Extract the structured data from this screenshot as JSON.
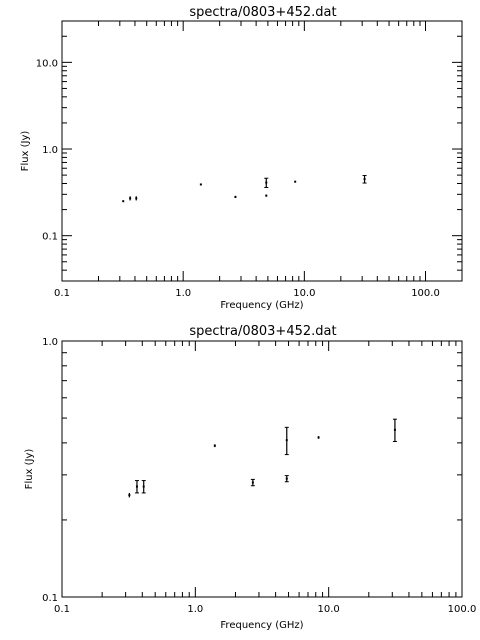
{
  "chart_data": [
    {
      "type": "scatter",
      "title": "spectra/0803+452.dat",
      "xlabel": "Frequency (GHz)",
      "ylabel": "Flux (Jy)",
      "xscale": "log",
      "yscale": "log",
      "xlim": [
        0.1,
        200
      ],
      "ylim": [
        0.03,
        30
      ],
      "xticks": [
        "0.1",
        "1.0",
        "10.0",
        "100.0"
      ],
      "yticks": [
        "0.1",
        "1.0",
        "10.0"
      ],
      "grid": false,
      "points": [
        {
          "x": 0.32,
          "y": 0.25,
          "err": 0.005
        },
        {
          "x": 0.365,
          "y": 0.27,
          "err": 0.015
        },
        {
          "x": 0.41,
          "y": 0.27,
          "err": 0.015
        },
        {
          "x": 1.4,
          "y": 0.39,
          "err": 0.005
        },
        {
          "x": 2.7,
          "y": 0.28,
          "err": 0.008
        },
        {
          "x": 4.85,
          "y": 0.41,
          "err": 0.05
        },
        {
          "x": 4.85,
          "y": 0.29,
          "err": 0.008
        },
        {
          "x": 8.4,
          "y": 0.42,
          "err": 0.005
        },
        {
          "x": 31.4,
          "y": 0.45,
          "err": 0.045
        }
      ]
    },
    {
      "type": "scatter",
      "title": "spectra/0803+452.dat",
      "xlabel": "Frequency (GHz)",
      "ylabel": "Flux (Jy)",
      "xscale": "log",
      "yscale": "log",
      "xlim": [
        0.1,
        100
      ],
      "ylim": [
        0.1,
        1.0
      ],
      "xticks": [
        "0.1",
        "1.0",
        "10.0",
        "100.0"
      ],
      "yticks": [
        "0.1",
        "1.0"
      ],
      "grid": false,
      "points": [
        {
          "x": 0.32,
          "y": 0.25,
          "err": 0.005
        },
        {
          "x": 0.365,
          "y": 0.27,
          "err": 0.015
        },
        {
          "x": 0.41,
          "y": 0.27,
          "err": 0.015
        },
        {
          "x": 1.4,
          "y": 0.39,
          "err": 0.005
        },
        {
          "x": 2.7,
          "y": 0.28,
          "err": 0.008
        },
        {
          "x": 4.85,
          "y": 0.41,
          "err": 0.05
        },
        {
          "x": 4.85,
          "y": 0.29,
          "err": 0.008
        },
        {
          "x": 8.4,
          "y": 0.42,
          "err": 0.005
        },
        {
          "x": 31.4,
          "y": 0.45,
          "err": 0.045
        }
      ]
    }
  ]
}
